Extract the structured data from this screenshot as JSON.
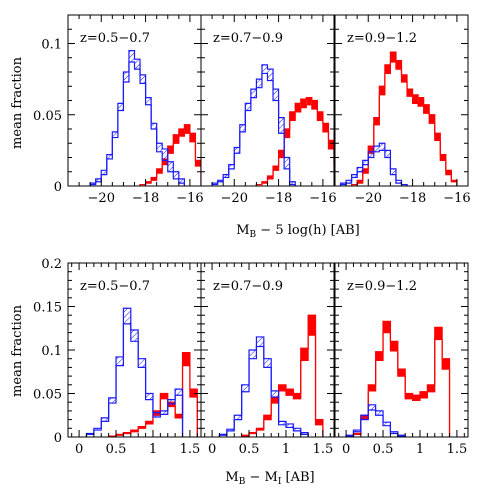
{
  "chart_data": [
    {
      "id": "top",
      "type": "step",
      "ylabel": "mean fraction",
      "xlabel_main": "M",
      "xlabel_sub": "B",
      "xlabel_rest": " − 5 log(h) [AB]",
      "xlim": [
        -21.5,
        -15.5
      ],
      "ylim": [
        0,
        0.12
      ],
      "xticks": [
        -20,
        -18,
        -16
      ],
      "xtick_labels": [
        "−20",
        "−18",
        "−16"
      ],
      "yticks": [
        0,
        0.05,
        0.1
      ],
      "ytick_labels": [
        "0",
        "0.05",
        "0.1"
      ],
      "bin_width": 0.25,
      "blue_color": "#1a1aff",
      "red_color": "#ff0000",
      "panels": [
        {
          "label": "z=0.5−0.7",
          "blue": {
            "x_start": -20.5,
            "upper": [
              0.002,
              0.005,
              0.011,
              0.022,
              0.038,
              0.058,
              0.08,
              0.095,
              0.089,
              0.078,
              0.062,
              0.044,
              0.03,
              0.026,
              0.017,
              0.01,
              0.005
            ],
            "lower": [
              0.001,
              0.003,
              0.008,
              0.019,
              0.034,
              0.053,
              0.073,
              0.087,
              0.082,
              0.072,
              0.057,
              0.04,
              0.024,
              0.018,
              0.01,
              0.005,
              0.002
            ]
          },
          "red": {
            "x_start": -18.25,
            "upper": [
              0.001,
              0.003,
              0.006,
              0.012,
              0.019,
              0.028,
              0.036,
              0.04,
              0.043,
              0.037,
              0.018,
              0.001
            ],
            "lower": [
              0.001,
              0.002,
              0.004,
              0.009,
              0.015,
              0.023,
              0.03,
              0.035,
              0.037,
              0.031,
              0.014,
              0.001
            ]
          }
        },
        {
          "label": "z=0.7−0.9",
          "blue": {
            "x_start": -21.0,
            "upper": [
              0.002,
              0.004,
              0.008,
              0.015,
              0.027,
              0.043,
              0.058,
              0.068,
              0.075,
              0.085,
              0.082,
              0.068,
              0.048,
              0.02,
              0.003
            ],
            "lower": [
              0.001,
              0.003,
              0.006,
              0.012,
              0.023,
              0.038,
              0.053,
              0.062,
              0.069,
              0.079,
              0.074,
              0.06,
              0.037,
              0.012,
              0.001
            ]
          },
          "red": {
            "x_start": -19.0,
            "upper": [
              0.001,
              0.003,
              0.007,
              0.014,
              0.025,
              0.04,
              0.052,
              0.058,
              0.061,
              0.062,
              0.06,
              0.052,
              0.044,
              0.032,
              0.016,
              0.005,
              0.001
            ],
            "lower": [
              0.001,
              0.002,
              0.005,
              0.011,
              0.02,
              0.034,
              0.046,
              0.052,
              0.055,
              0.057,
              0.054,
              0.046,
              0.038,
              0.026,
              0.011,
              0.003,
              0.001
            ]
          }
        },
        {
          "label": "z=0.9−1.2",
          "blue": {
            "x_start": -21.25,
            "upper": [
              0.002,
              0.004,
              0.008,
              0.013,
              0.018,
              0.024,
              0.028,
              0.03,
              0.025,
              0.012,
              0.004,
              0.001
            ],
            "lower": [
              0.001,
              0.002,
              0.006,
              0.01,
              0.015,
              0.02,
              0.024,
              0.025,
              0.02,
              0.008,
              0.002,
              0.001
            ]
          },
          "red": {
            "x_start": -20.75,
            "upper": [
              0.001,
              0.004,
              0.012,
              0.028,
              0.048,
              0.07,
              0.085,
              0.094,
              0.088,
              0.078,
              0.068,
              0.064,
              0.062,
              0.057,
              0.05,
              0.037,
              0.022,
              0.011,
              0.004
            ],
            "lower": [
              0.001,
              0.002,
              0.009,
              0.023,
              0.043,
              0.064,
              0.079,
              0.087,
              0.082,
              0.073,
              0.063,
              0.058,
              0.056,
              0.051,
              0.044,
              0.032,
              0.018,
              0.008,
              0.003
            ]
          }
        }
      ]
    },
    {
      "id": "bottom",
      "type": "step",
      "ylabel": "mean fraction",
      "xlabel_main": "M",
      "xlabel_sub": "B",
      "xlabel_rest": " − M",
      "xlabel_sub2": "I",
      "xlabel_rest2": " [AB]",
      "xlim": [
        -0.15,
        1.65
      ],
      "ylim": [
        0,
        0.2
      ],
      "xticks": [
        0,
        0.5,
        1,
        1.5
      ],
      "xtick_labels": [
        "0",
        "0.5",
        "1",
        "1.5"
      ],
      "yticks": [
        0,
        0.05,
        0.1,
        0.15,
        0.2
      ],
      "ytick_labels": [
        "0",
        "0.05",
        "0.1",
        "0.15",
        "0.2"
      ],
      "bin_width": 0.1,
      "blue_color": "#1a1aff",
      "red_color": "#ff0000",
      "panels": [
        {
          "label": "z=0.5−0.7",
          "blue": {
            "x_start": 0.1,
            "upper": [
              0.004,
              0.01,
              0.022,
              0.045,
              0.092,
              0.148,
              0.123,
              0.09,
              0.05,
              0.028,
              0.03,
              0.043,
              0.055
            ],
            "lower": [
              0.003,
              0.008,
              0.018,
              0.039,
              0.082,
              0.13,
              0.11,
              0.08,
              0.043,
              0.023,
              0.026,
              0.038,
              0.048
            ]
          },
          "red": {
            "x_start": 0.4,
            "upper": [
              0.001,
              0.003,
              0.005,
              0.008,
              0.012,
              0.018,
              0.03,
              0.05,
              0.04,
              0.026,
              0.097,
              0.055
            ],
            "lower": [
              0.001,
              0.002,
              0.004,
              0.006,
              0.01,
              0.015,
              0.025,
              0.044,
              0.035,
              0.022,
              0.082,
              0.046
            ]
          }
        },
        {
          "label": "z=0.7−0.9",
          "blue": {
            "x_start": 0.1,
            "upper": [
              0.003,
              0.009,
              0.025,
              0.06,
              0.1,
              0.115,
              0.09,
              0.053,
              0.018,
              0.015,
              0.01,
              0.005
            ],
            "lower": [
              0.002,
              0.007,
              0.02,
              0.052,
              0.09,
              0.104,
              0.08,
              0.046,
              0.014,
              0.011,
              0.007,
              0.003
            ]
          },
          "red": {
            "x_start": 0.4,
            "upper": [
              0.002,
              0.005,
              0.01,
              0.025,
              0.045,
              0.06,
              0.055,
              0.05,
              0.102,
              0.14,
              0.02
            ],
            "lower": [
              0.001,
              0.004,
              0.008,
              0.02,
              0.039,
              0.053,
              0.048,
              0.044,
              0.088,
              0.117,
              0.014
            ]
          }
        },
        {
          "label": "z=0.9−1.2",
          "blue": {
            "x_start": 0.0,
            "upper": [
              0.002,
              0.008,
              0.025,
              0.037,
              0.03,
              0.017,
              0.006,
              0.002
            ],
            "lower": [
              0.001,
              0.006,
              0.02,
              0.031,
              0.025,
              0.013,
              0.004,
              0.001
            ]
          },
          "red": {
            "x_start": 0.1,
            "upper": [
              0.004,
              0.025,
              0.06,
              0.098,
              0.133,
              0.11,
              0.078,
              0.05,
              0.048,
              0.052,
              0.06,
              0.126,
              0.09
            ],
            "lower": [
              0.003,
              0.021,
              0.053,
              0.088,
              0.12,
              0.099,
              0.07,
              0.044,
              0.042,
              0.045,
              0.052,
              0.112,
              0.078
            ]
          }
        }
      ]
    }
  ]
}
